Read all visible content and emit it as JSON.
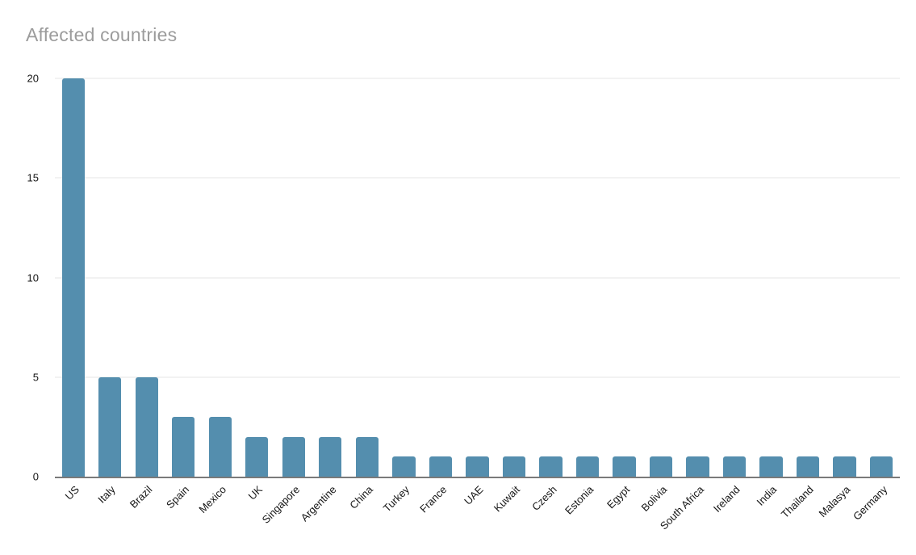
{
  "chart_data": {
    "type": "bar",
    "title": "Affected countries",
    "categories": [
      "US",
      "Italy",
      "Brazil",
      "Spain",
      "Mexico",
      "UK",
      "Singapore",
      "Argentine",
      "China",
      "Turkey",
      "France",
      "UAE",
      "Kuwait",
      "Czesh",
      "Estonia",
      "Egypt",
      "Bolivia",
      "South Africa",
      "Ireland",
      "India",
      "Thailand",
      "Malasya",
      "Germany"
    ],
    "values": [
      20,
      5,
      5,
      3,
      3,
      2,
      2,
      2,
      2,
      1,
      1,
      1,
      1,
      1,
      1,
      1,
      1,
      1,
      1,
      1,
      1,
      1,
      1
    ],
    "xlabel": "",
    "ylabel": "",
    "ylim": [
      0,
      20
    ],
    "yticks": [
      0,
      5,
      10,
      15,
      20
    ],
    "grid": true,
    "legend": "none",
    "x_label_rotation_deg": -45,
    "colors": {
      "bar": "#548eae",
      "title": "#9c9c9c",
      "tick_label": "#161616",
      "gridline": "#e4e4e4",
      "axis_line": "#7a7a7a",
      "background": "#ffffff"
    }
  }
}
